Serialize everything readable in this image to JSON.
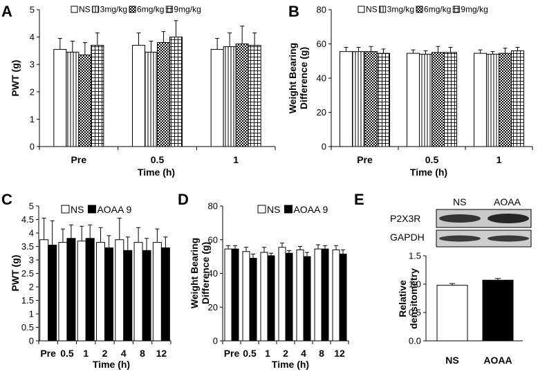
{
  "blot": {
    "lane_labels": [
      "NS",
      "AOAA"
    ],
    "row_labels": [
      "P2X3R",
      "GAPDH"
    ]
  },
  "chart_data": [
    {
      "panel": "A",
      "type": "bar",
      "ylabel": "PWT (g)",
      "xlabel": "Time (h)",
      "ylim": [
        0,
        5
      ],
      "yticks": [
        0,
        1,
        2,
        3,
        4,
        5
      ],
      "categories": [
        "Pre",
        "0.5",
        "1"
      ],
      "legend_position": "top",
      "series": [
        {
          "name": "NS",
          "pattern": "white",
          "values": [
            3.55,
            3.7,
            3.55
          ],
          "errors": [
            0.4,
            0.45,
            0.4
          ]
        },
        {
          "name": "3mg/kg",
          "pattern": "vlines",
          "values": [
            3.45,
            3.45,
            3.65
          ],
          "errors": [
            0.4,
            0.4,
            0.5
          ]
        },
        {
          "name": "6mg/kg",
          "pattern": "checker",
          "values": [
            3.35,
            3.8,
            3.75
          ],
          "errors": [
            0.45,
            0.4,
            0.65
          ]
        },
        {
          "name": "9mg/kg",
          "pattern": "grid",
          "values": [
            3.7,
            4.0,
            3.7
          ],
          "errors": [
            0.45,
            0.6,
            0.45
          ]
        }
      ]
    },
    {
      "panel": "B",
      "type": "bar",
      "ylabel": "Weight Bearing Difference (g)",
      "ylabel_lines": [
        "Weight Bearing",
        "Difference (g)"
      ],
      "xlabel": "Time (h)",
      "ylim": [
        0,
        80
      ],
      "yticks": [
        0,
        20,
        40,
        60,
        80
      ],
      "categories": [
        "Pre",
        "0.5",
        "1"
      ],
      "legend_position": "top",
      "series": [
        {
          "name": "NS",
          "pattern": "white",
          "values": [
            55.5,
            54.5,
            54.5
          ],
          "errors": [
            2.5,
            2.0,
            2.0
          ]
        },
        {
          "name": "3mg/kg",
          "pattern": "vlines",
          "values": [
            55.5,
            54.0,
            54.0
          ],
          "errors": [
            2.5,
            2.0,
            1.5
          ]
        },
        {
          "name": "6mg/kg",
          "pattern": "checker",
          "values": [
            55.5,
            55.0,
            54.5
          ],
          "errors": [
            3.0,
            3.5,
            3.0
          ]
        },
        {
          "name": "9mg/kg",
          "pattern": "grid",
          "values": [
            54.5,
            55.0,
            56.0
          ],
          "errors": [
            2.5,
            3.0,
            2.0
          ]
        }
      ]
    },
    {
      "panel": "C",
      "type": "bar",
      "ylabel": "PWT (g)",
      "xlabel": "Time (h)",
      "ylim": [
        0,
        5
      ],
      "yticks": [
        0,
        0.5,
        1,
        1.5,
        2,
        2.5,
        3,
        3.5,
        4,
        4.5,
        5
      ],
      "categories": [
        "Pre",
        "0.5",
        "1",
        "2",
        "4",
        "8",
        "12"
      ],
      "legend_position": "top",
      "series": [
        {
          "name": "NS",
          "pattern": "white",
          "values": [
            3.75,
            3.65,
            3.7,
            3.65,
            3.75,
            3.65,
            3.65
          ],
          "errors": [
            0.8,
            0.5,
            0.55,
            0.55,
            0.8,
            0.55,
            0.5
          ]
        },
        {
          "name": "AOAA 9",
          "pattern": "black",
          "values": [
            3.55,
            3.8,
            3.8,
            3.45,
            3.35,
            3.35,
            3.45
          ],
          "errors": [
            0.9,
            0.5,
            0.5,
            0.45,
            0.5,
            0.45,
            0.4
          ]
        }
      ]
    },
    {
      "panel": "D",
      "type": "bar",
      "ylabel": "Weight Bearing Difference (g)",
      "ylabel_lines": [
        "Weight Bearing",
        "Difference (g)"
      ],
      "xlabel": "Time (h)",
      "ylim": [
        0,
        80
      ],
      "yticks": [
        0,
        20,
        40,
        60,
        80
      ],
      "categories": [
        "Pre",
        "0.5",
        "1",
        "2",
        "4",
        "8",
        "12"
      ],
      "legend_position": "top",
      "series": [
        {
          "name": "NS",
          "pattern": "white",
          "values": [
            54.5,
            53.0,
            52.5,
            55.5,
            54.0,
            54.5,
            54.0
          ],
          "errors": [
            2.0,
            2.5,
            3.0,
            2.5,
            2.0,
            2.5,
            2.5
          ]
        },
        {
          "name": "AOAA 9",
          "pattern": "black",
          "values": [
            54.5,
            49.0,
            50.5,
            52.0,
            50.0,
            54.5,
            51.5
          ],
          "errors": [
            2.0,
            2.5,
            1.5,
            1.5,
            2.5,
            2.0,
            2.5
          ]
        }
      ]
    },
    {
      "panel": "E",
      "type": "bar",
      "ylabel": "Relative densitometry",
      "ylabel_lines": [
        "Relative",
        "densitometry"
      ],
      "xlabel": "",
      "ylim": [
        0,
        1.5
      ],
      "yticks": [
        0.0,
        0.5,
        1.0,
        1.5
      ],
      "ytick_labels": [
        "0.0",
        "0.5",
        "1.0",
        "1.5"
      ],
      "categories": [
        "NS",
        "AOAA"
      ],
      "series": [
        {
          "name": "Relative densitometry",
          "patterns": [
            "white",
            "black"
          ],
          "values": [
            0.98,
            1.07
          ],
          "errors": [
            0.03,
            0.03
          ]
        }
      ]
    }
  ]
}
